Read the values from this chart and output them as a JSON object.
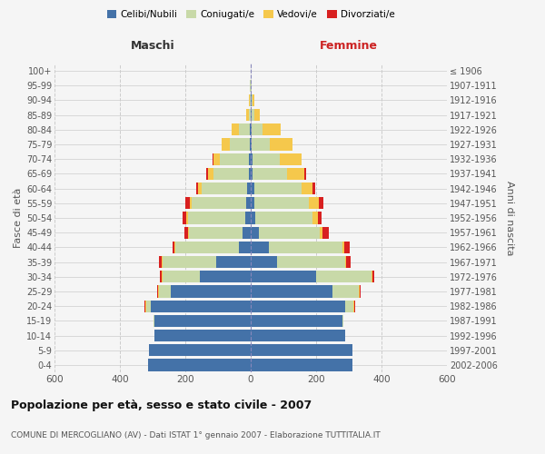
{
  "age_groups": [
    "0-4",
    "5-9",
    "10-14",
    "15-19",
    "20-24",
    "25-29",
    "30-34",
    "35-39",
    "40-44",
    "45-49",
    "50-54",
    "55-59",
    "60-64",
    "65-69",
    "70-74",
    "75-79",
    "80-84",
    "85-89",
    "90-94",
    "95-99",
    "100+"
  ],
  "birth_years": [
    "2002-2006",
    "1997-2001",
    "1992-1996",
    "1987-1991",
    "1982-1986",
    "1977-1981",
    "1972-1976",
    "1967-1971",
    "1962-1966",
    "1957-1961",
    "1952-1956",
    "1947-1951",
    "1942-1946",
    "1937-1941",
    "1932-1936",
    "1927-1931",
    "1922-1926",
    "1917-1921",
    "1912-1916",
    "1907-1911",
    "≤ 1906"
  ],
  "male_celibe": [
    315,
    310,
    295,
    295,
    305,
    245,
    155,
    105,
    35,
    25,
    18,
    15,
    10,
    5,
    5,
    3,
    2,
    0,
    0,
    0,
    0
  ],
  "male_coniugato": [
    0,
    0,
    0,
    2,
    15,
    35,
    115,
    165,
    195,
    165,
    175,
    165,
    140,
    110,
    90,
    60,
    35,
    5,
    3,
    2,
    0
  ],
  "male_vedovo": [
    0,
    0,
    0,
    0,
    2,
    2,
    2,
    2,
    2,
    2,
    3,
    5,
    10,
    15,
    20,
    25,
    20,
    8,
    3,
    1,
    0
  ],
  "male_divorziato": [
    0,
    0,
    0,
    0,
    2,
    5,
    5,
    8,
    8,
    10,
    12,
    15,
    8,
    5,
    2,
    0,
    0,
    0,
    0,
    0,
    0
  ],
  "female_celibe": [
    310,
    310,
    290,
    280,
    290,
    250,
    200,
    80,
    55,
    25,
    15,
    12,
    10,
    5,
    5,
    3,
    2,
    3,
    2,
    0,
    0
  ],
  "female_coniugata": [
    0,
    0,
    0,
    2,
    25,
    80,
    170,
    210,
    225,
    185,
    175,
    165,
    145,
    105,
    85,
    55,
    35,
    8,
    3,
    2,
    0
  ],
  "female_vedova": [
    0,
    0,
    0,
    0,
    2,
    2,
    3,
    3,
    5,
    10,
    15,
    30,
    35,
    55,
    65,
    70,
    55,
    18,
    5,
    2,
    0
  ],
  "female_divorziata": [
    0,
    0,
    0,
    0,
    2,
    3,
    5,
    12,
    18,
    18,
    12,
    15,
    8,
    5,
    0,
    0,
    0,
    0,
    0,
    0,
    0
  ],
  "color_celibe": "#4472a8",
  "color_coniugato": "#c8d9a8",
  "color_vedovo": "#f5c84c",
  "color_divorziato": "#d82020",
  "title": "Popolazione per età, sesso e stato civile - 2007",
  "subtitle": "COMUNE DI MERCOGLIANO (AV) - Dati ISTAT 1° gennaio 2007 - Elaborazione TUTTITALIA.IT",
  "xlabel_left": "Maschi",
  "xlabel_right": "Femmine",
  "ylabel_left": "Fasce di età",
  "ylabel_right": "Anni di nascita",
  "xlim": 600,
  "bg_color": "#f5f5f5",
  "grid_color": "#cccccc"
}
